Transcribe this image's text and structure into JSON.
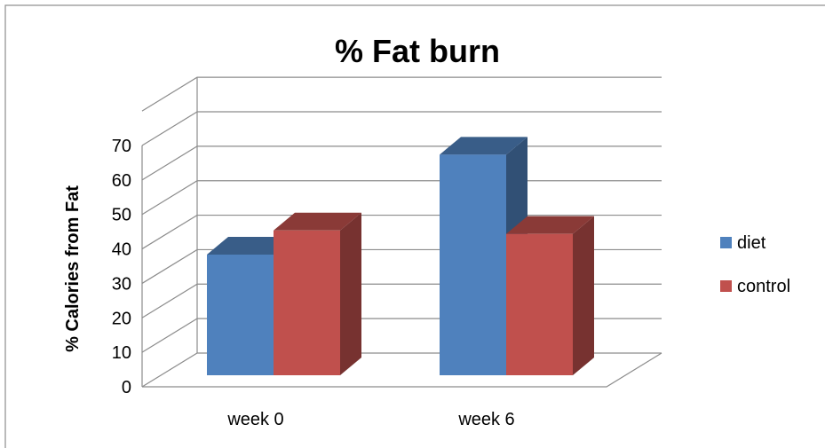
{
  "chart_data": {
    "type": "bar",
    "title": "% Fat burn",
    "ylabel": "% Calories from Fat",
    "xlabel": "",
    "categories": [
      "week 0",
      "week 6"
    ],
    "series": [
      {
        "name": "diet",
        "values": [
          35,
          64
        ],
        "color": "#4f81bd"
      },
      {
        "name": "control",
        "values": [
          42,
          41
        ],
        "color": "#c0504d"
      }
    ],
    "ylim": [
      0,
      70
    ],
    "yticks": [
      "0",
      "10",
      "20",
      "30",
      "40",
      "50",
      "60",
      "70"
    ],
    "grid": true,
    "legend": "right",
    "three_d": true
  }
}
